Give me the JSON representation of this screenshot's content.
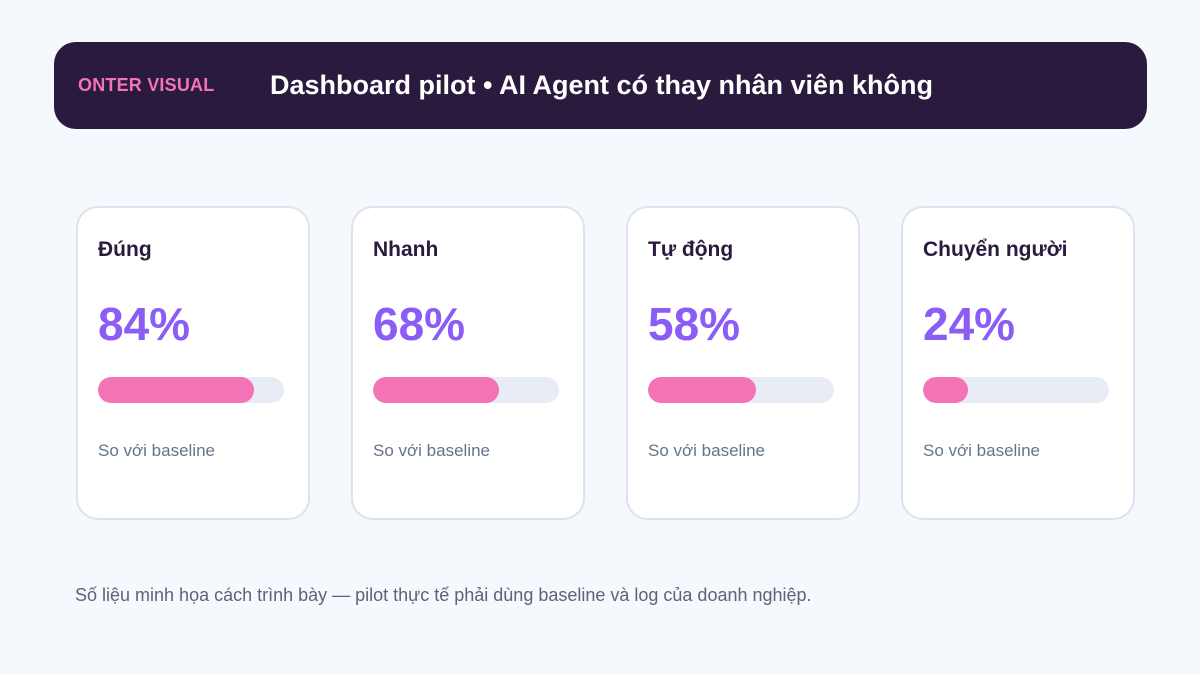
{
  "header": {
    "brand": "ONTER VISUAL",
    "title": "Dashboard pilot • AI Agent có thay nhân viên không"
  },
  "cards": [
    {
      "label": "Đúng",
      "value": "84%",
      "progress": 0.84,
      "note": "So với baseline"
    },
    {
      "label": "Nhanh",
      "value": "68%",
      "progress": 0.68,
      "note": "So với baseline"
    },
    {
      "label": "Tự động",
      "value": "58%",
      "progress": 0.58,
      "note": "So với baseline"
    },
    {
      "label": "Chuyển người",
      "value": "24%",
      "progress": 0.24,
      "note": "So với baseline"
    }
  ],
  "footnote": "Số liệu minh họa cách trình bày — pilot thực tế phải dùng baseline và log của doanh nghiệp.",
  "colors": {
    "header_bg": "#2a1a3e",
    "brand": "#f472b6",
    "value": "#8b5cf6",
    "bar_fill": "#f472b6",
    "bar_track": "#e8edf5"
  }
}
